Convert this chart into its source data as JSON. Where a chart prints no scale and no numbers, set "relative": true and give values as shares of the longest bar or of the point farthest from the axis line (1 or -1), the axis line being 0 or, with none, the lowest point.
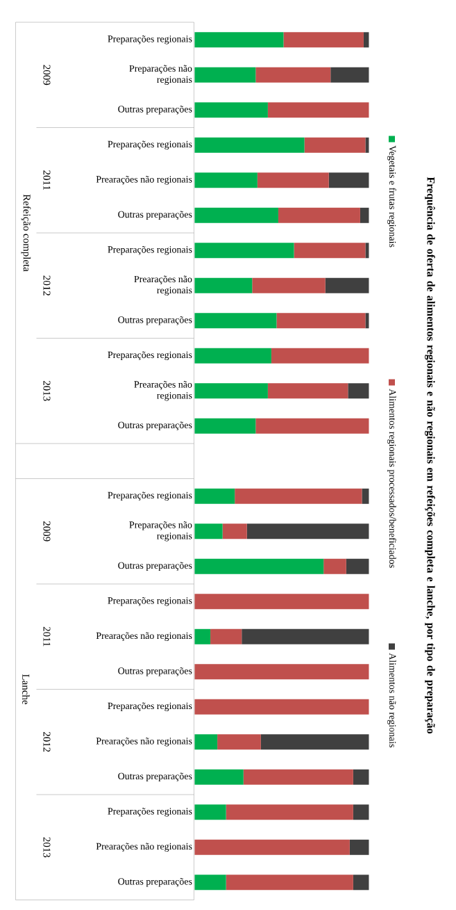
{
  "chart_data": {
    "type": "bar",
    "orientation": "horizontal",
    "stacked": true,
    "relative": true,
    "legend": "right",
    "title": "Frequência de oferta de alimentos regionais e não regionais em refeições completa e lanche, por tipo de preparação",
    "categories": [
      "Preparações regionais",
      "Preparações não regionais",
      "Outras preparações",
      "Preparações regionais",
      "Prearações não regionais",
      "Outras preparações",
      "Preparações regionais",
      "Prearações não regionais",
      "Outras preparações",
      "Preparações regionais",
      "Prearações não regionais",
      "Outras preparações",
      null,
      "Preparações regionais",
      "Preparações não regionais",
      "Outras preparações",
      "Preparações regionais",
      "Prearações não regionais",
      "Outras preparações",
      "Preparações regionais",
      "Prearações não regionais",
      "Outras preparações",
      "Preparações regionais",
      "Prearações não regionais",
      "Outras preparações"
    ],
    "series": [
      {
        "name": "Vegetais e frutas regionais",
        "color": "#00b050",
        "values": [
          0.51,
          0.35,
          0.42,
          0.63,
          0.36,
          0.48,
          0.57,
          0.33,
          0.47,
          0.44,
          0.42,
          0.35,
          null,
          0.23,
          0.16,
          0.74,
          0,
          0.09,
          0,
          0,
          0.13,
          0.28,
          0.18,
          0,
          0.18
        ]
      },
      {
        "name": "Alimentos regionais processados/beneficiados",
        "color": "#c0504d",
        "values": [
          0.46,
          0.43,
          0.58,
          0.35,
          0.41,
          0.47,
          0.41,
          0.42,
          0.51,
          0.56,
          0.46,
          0.65,
          null,
          0.73,
          0.14,
          0.13,
          1,
          0.18,
          1,
          1,
          0.25,
          0.63,
          0.73,
          0.89,
          0.73
        ]
      },
      {
        "name": "Alimentos não regionais",
        "color": "#404040",
        "values": [
          0.03,
          0.22,
          0,
          0.02,
          0.23,
          0.05,
          0.02,
          0.25,
          0.02,
          0,
          0.12,
          0,
          null,
          0.04,
          0.7,
          0.13,
          0,
          0.73,
          0,
          0,
          0.62,
          0.09,
          0.09,
          0.11,
          0.09
        ]
      }
    ],
    "annotations": [
      "2009",
      "2011",
      "2012",
      "2013",
      "Refeição completa",
      "2009",
      "2011",
      "2012",
      "2013",
      "Lanche"
    ]
  }
}
